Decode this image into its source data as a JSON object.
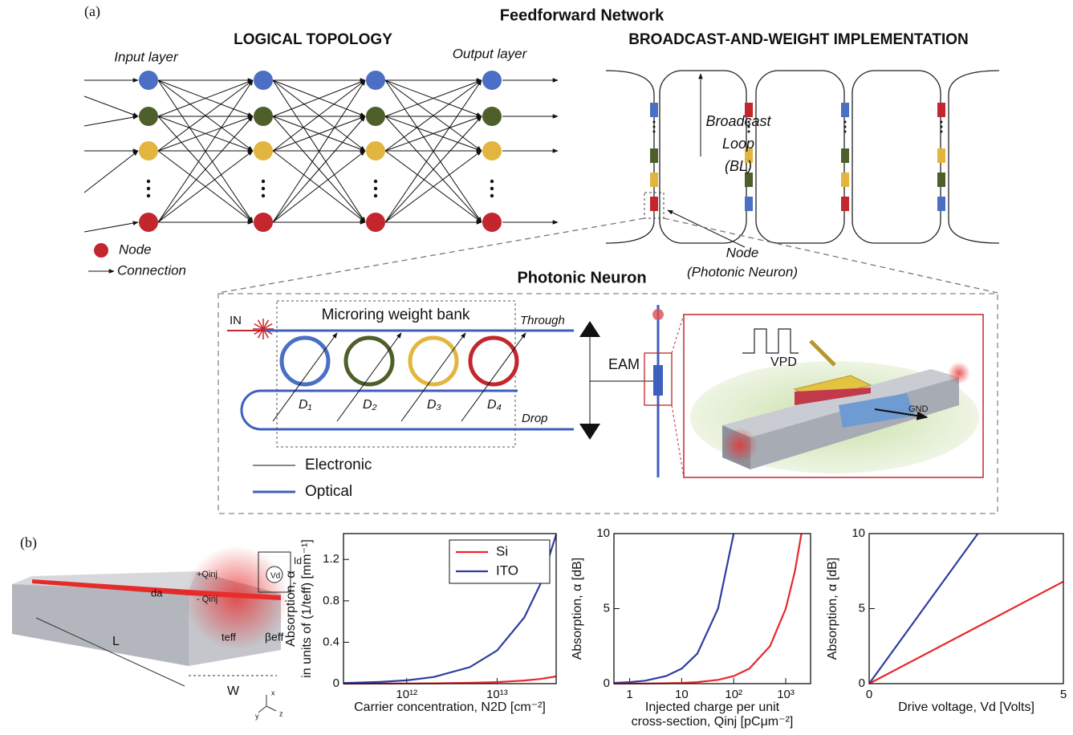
{
  "panel_a": {
    "label": "(a)",
    "title": "Feedforward Network",
    "logical_topology": "LOGICAL TOPOLOGY",
    "implementation": "BROADCAST-AND-WEIGHT IMPLEMENTATION",
    "input_layer": "Input layer",
    "output_layer": "Output layer",
    "legend_node": "Node",
    "legend_connection": "Connection",
    "broadcast_loop": [
      "Broadcast",
      "Loop",
      "(BL)"
    ],
    "node_label": [
      "Node",
      "(Photonic Neuron)"
    ]
  },
  "neuron": {
    "title": "Photonic Neuron",
    "in": "IN",
    "bank": "Microring weight bank",
    "through": "Through",
    "drop": "Drop",
    "eam": "EAM",
    "weights": [
      "D₁",
      "D₂",
      "D₃",
      "D₄"
    ],
    "electronic": "Electronic",
    "optical": "Optical",
    "vpd": "VPD",
    "gnd": "GND"
  },
  "panel_b": {
    "label": "(b)",
    "device_labels": {
      "q_plus": "+Qinj",
      "q_minus": "- Qinj",
      "da": "da",
      "teff": "teff",
      "beta": "βeff",
      "length": "L",
      "width": "W",
      "vd": "Vd",
      "id": "Id",
      "ax_x": "x",
      "ax_y": "y",
      "ax_z": "z"
    }
  },
  "chart_data": [
    {
      "type": "line",
      "xlog": true,
      "xlabel": [
        "Carrier concentration, N2D [cm⁻²]"
      ],
      "ylabel": [
        "Absorption, α",
        "in units of (1/teff) [mm⁻¹]"
      ],
      "x": [
        200000000000.0,
        500000000000.0,
        1000000000000.0,
        2000000000000.0,
        5000000000000.0,
        10000000000000.0,
        20000000000000.0,
        30000000000000.0,
        45000000000000.0
      ],
      "series": [
        {
          "name": "Si",
          "color": "#e8282b",
          "values": [
            0.0003,
            0.0008,
            0.0015,
            0.003,
            0.008,
            0.015,
            0.03,
            0.045,
            0.07
          ]
        },
        {
          "name": "ITO",
          "color": "#2f3d9e",
          "values": [
            0.006,
            0.016,
            0.032,
            0.064,
            0.16,
            0.32,
            0.64,
            0.96,
            1.44
          ]
        }
      ],
      "xlim": [
        200000000000.0,
        45000000000000.0
      ],
      "xticks": [
        {
          "value": 1000000000000.0,
          "label": "10¹²"
        },
        {
          "value": 10000000000000.0,
          "label": "10¹³"
        }
      ],
      "ylim": [
        0,
        1.45
      ],
      "yticks": [
        0,
        0.4,
        0.8,
        1.2
      ],
      "legend": "upper right"
    },
    {
      "type": "line",
      "xlog": true,
      "xlabel": [
        "Injected charge per unit",
        "cross-section, Qinj [pCμm⁻²]"
      ],
      "ylabel": [
        "Absorption, α [dB]"
      ],
      "x": [
        0.5,
        1,
        2,
        5,
        10,
        20,
        50,
        100,
        200,
        500,
        1000,
        1500,
        2000
      ],
      "series": [
        {
          "color": "#2f3d9e",
          "values": [
            0.05,
            0.1,
            0.2,
            0.5,
            1,
            2,
            5,
            10,
            null,
            null,
            null,
            null,
            null
          ]
        },
        {
          "color": "#e8282b",
          "values": [
            0.0025,
            0.005,
            0.01,
            0.025,
            0.05,
            0.1,
            0.25,
            0.5,
            1,
            2.5,
            5,
            7.5,
            10
          ]
        }
      ],
      "xlim": [
        0.5,
        3000
      ],
      "xticks": [
        1,
        10,
        {
          "value": 100,
          "label": "10²"
        },
        {
          "value": 1000,
          "label": "10³"
        }
      ],
      "ylim": [
        0,
        10
      ],
      "yticks": [
        0,
        5,
        10
      ]
    },
    {
      "type": "line",
      "xlog": false,
      "xlabel": [
        "Drive voltage, Vd [Volts]"
      ],
      "ylabel": [
        "Absorption, α [dB]"
      ],
      "x": [
        0,
        2.8,
        5
      ],
      "series": [
        {
          "color": "#2f3d9e",
          "values": [
            0,
            10,
            null
          ]
        },
        {
          "color": "#e8282b",
          "values": [
            0,
            3.8,
            6.8
          ]
        }
      ],
      "xlim": [
        0,
        5
      ],
      "xticks": [
        0,
        5
      ],
      "ylim": [
        0,
        10
      ],
      "yticks": [
        0,
        5,
        10
      ]
    }
  ]
}
